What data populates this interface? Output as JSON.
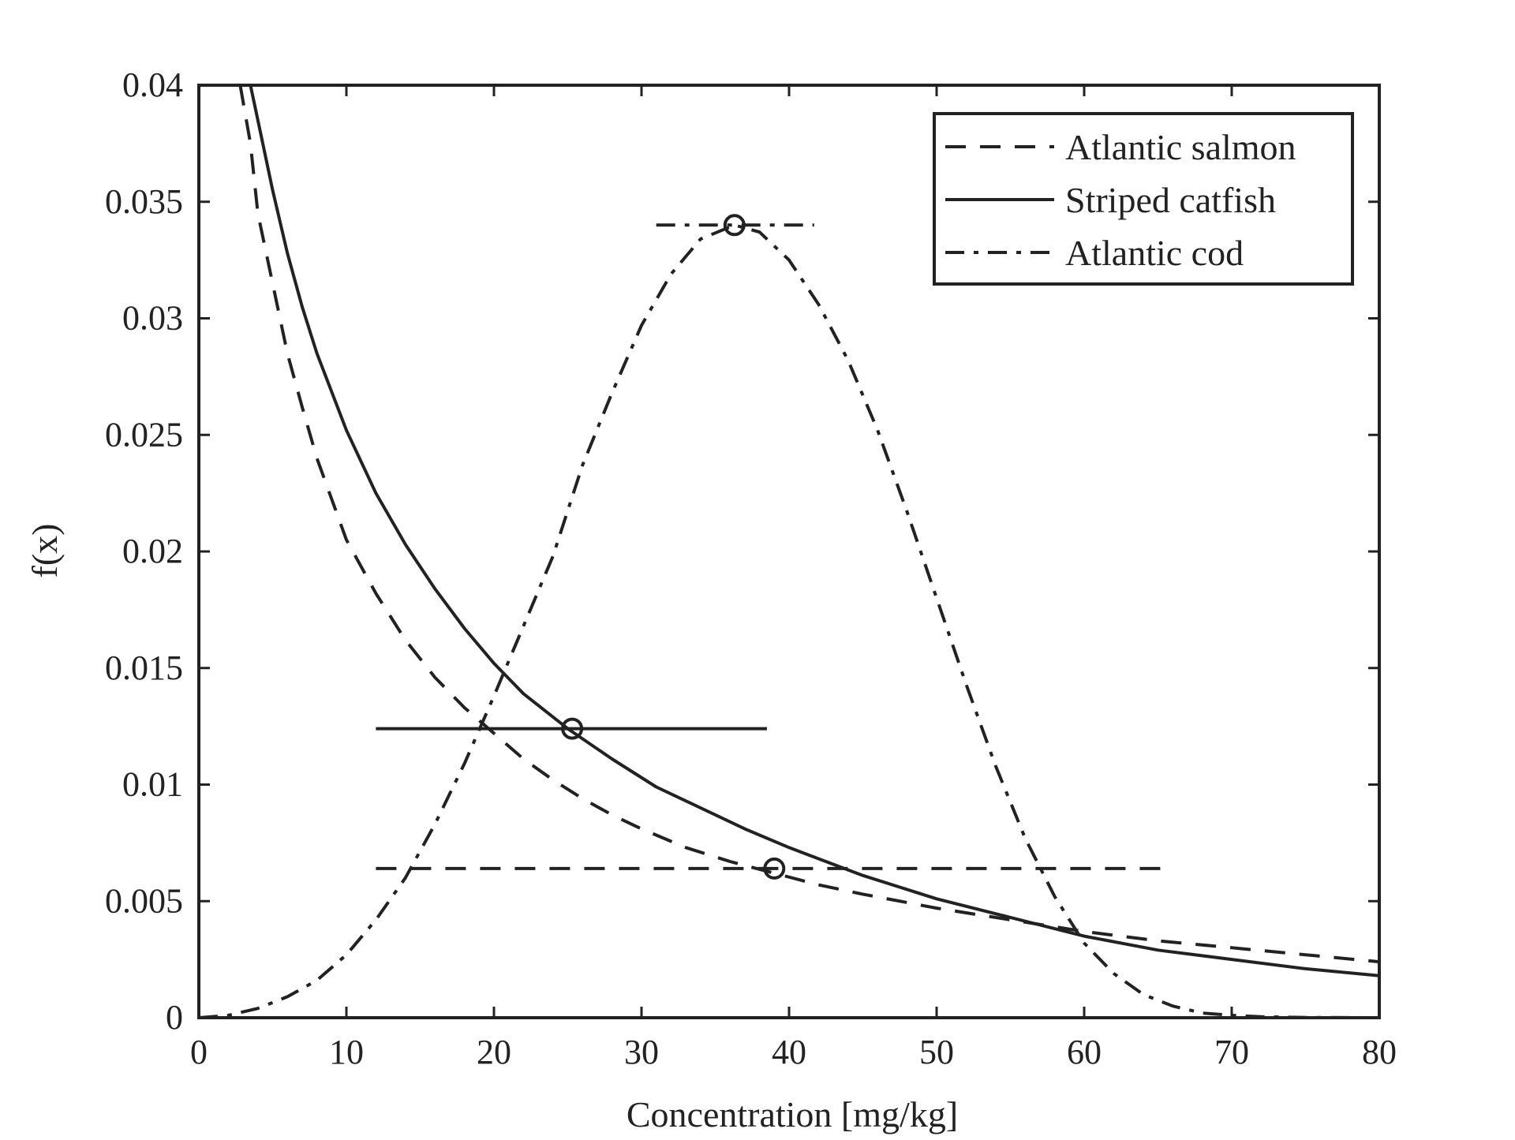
{
  "chart_data": {
    "type": "line",
    "title": "",
    "xlabel": "Concentration [mg/kg]",
    "ylabel": "f(x)",
    "xlim": [
      0,
      80
    ],
    "ylim": [
      0,
      0.04
    ],
    "xticks": [
      "0",
      "10",
      "20",
      "30",
      "40",
      "50",
      "60",
      "70",
      "80"
    ],
    "yticks": [
      "0",
      "0.005",
      "0.01",
      "0.015",
      "0.02",
      "0.025",
      "0.03",
      "0.035",
      "0.04"
    ],
    "grid": false,
    "legend_position": "top-right",
    "series": [
      {
        "name": "Atlantic salmon",
        "style": "dashed",
        "x": [
          2.8,
          3.5,
          4,
          5,
          6,
          7,
          8,
          10,
          12,
          14,
          16,
          18,
          20,
          22,
          24,
          26,
          28,
          30,
          33,
          36,
          39,
          42,
          45,
          50,
          55,
          60,
          65,
          70,
          75,
          80
        ],
        "y": [
          0.04,
          0.0375,
          0.0345,
          0.0315,
          0.0285,
          0.0262,
          0.024,
          0.0205,
          0.0182,
          0.0162,
          0.0146,
          0.0133,
          0.0122,
          0.0111,
          0.0102,
          0.0094,
          0.0087,
          0.0081,
          0.0073,
          0.0067,
          0.0062,
          0.0057,
          0.0053,
          0.0047,
          0.0042,
          0.0037,
          0.0033,
          0.003,
          0.0027,
          0.0024
        ],
        "marker": {
          "x": 39,
          "y": 0.0064
        },
        "interval": {
          "x_start": 12,
          "x_end": 66,
          "y": 0.0064
        }
      },
      {
        "name": "Striped catfish",
        "style": "solid",
        "x": [
          3.5,
          4,
          5,
          6,
          7,
          8,
          10,
          12,
          14,
          16,
          18,
          20,
          22,
          25,
          28,
          31,
          34,
          37,
          40,
          45,
          50,
          55,
          60,
          65,
          70,
          75,
          80
        ],
        "y": [
          0.04,
          0.0385,
          0.0355,
          0.0328,
          0.0305,
          0.0285,
          0.0252,
          0.0225,
          0.0203,
          0.0184,
          0.0167,
          0.0152,
          0.0139,
          0.0124,
          0.0111,
          0.0099,
          0.009,
          0.0081,
          0.0073,
          0.0061,
          0.0051,
          0.0043,
          0.0035,
          0.0029,
          0.0025,
          0.0021,
          0.0018
        ],
        "marker": {
          "x": 25.3,
          "y": 0.0124
        },
        "interval": {
          "x_start": 12,
          "x_end": 38.5,
          "y": 0.0124
        }
      },
      {
        "name": "Atlantic cod",
        "style": "dashdot",
        "x": [
          0,
          2,
          4,
          6,
          8,
          10,
          12,
          14,
          16,
          18,
          20,
          22,
          24,
          26,
          28,
          30,
          32,
          34,
          36.3,
          38,
          40,
          42,
          44,
          46,
          48,
          50,
          52,
          54,
          56,
          58,
          60,
          62,
          64,
          66,
          68,
          70,
          72,
          75,
          80
        ],
        "y": [
          0,
          0.0001,
          0.0004,
          0.0009,
          0.0016,
          0.0027,
          0.0042,
          0.006,
          0.0083,
          0.0109,
          0.0138,
          0.0168,
          0.0198,
          0.0237,
          0.0268,
          0.0297,
          0.0319,
          0.0334,
          0.034,
          0.0337,
          0.0325,
          0.0306,
          0.0282,
          0.0252,
          0.0217,
          0.018,
          0.0143,
          0.0108,
          0.0077,
          0.0052,
          0.0032,
          0.0019,
          0.001,
          0.0005,
          0.0002,
          0.0001,
          4e-05,
          1e-05,
          0
        ],
        "marker": {
          "x": 36.3,
          "y": 0.034
        },
        "interval": {
          "x_start": 31,
          "x_end": 41.7,
          "y": 0.034
        }
      }
    ]
  }
}
